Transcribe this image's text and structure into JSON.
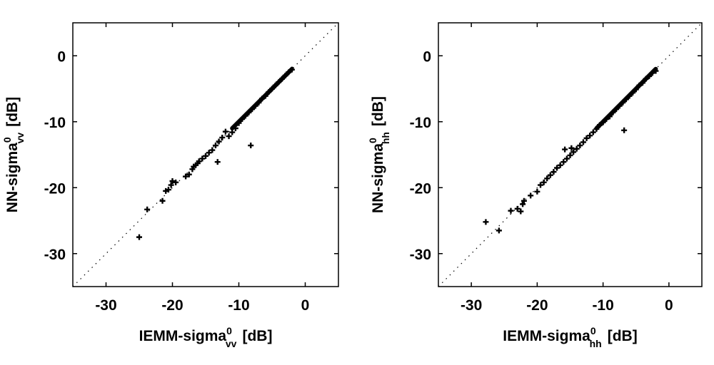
{
  "chart_data": [
    {
      "type": "scatter",
      "xlabel": "IEMM-sigma",
      "xlabel_sup": "0",
      "xlabel_sub": "vv",
      "xlabel_unit": "[dB]",
      "ylabel": "NN-sigma",
      "ylabel_sup": "0",
      "ylabel_sub": "vv",
      "ylabel_unit": "[dB]",
      "xlim": [
        -35,
        5
      ],
      "ylim": [
        -35,
        5
      ],
      "xticks": [
        -30,
        -20,
        -10,
        0
      ],
      "yticks": [
        -30,
        -20,
        -10,
        0
      ],
      "reference_line": "1:1 dotted",
      "grid": false,
      "marker": "+",
      "points": [
        [
          -25.0,
          -27.5
        ],
        [
          -23.8,
          -23.3
        ],
        [
          -21.5,
          -22.0
        ],
        [
          -21.0,
          -20.5
        ],
        [
          -20.6,
          -20.3
        ],
        [
          -20.2,
          -19.6
        ],
        [
          -20.0,
          -19.0
        ],
        [
          -19.5,
          -19.2
        ],
        [
          -18.0,
          -18.3
        ],
        [
          -17.5,
          -18.0
        ],
        [
          -17.0,
          -17.2
        ],
        [
          -16.8,
          -16.8
        ],
        [
          -16.5,
          -16.6
        ],
        [
          -16.2,
          -16.3
        ],
        [
          -16.0,
          -16.0
        ],
        [
          -15.5,
          -15.6
        ],
        [
          -15.0,
          -15.2
        ],
        [
          -14.5,
          -14.7
        ],
        [
          -14.0,
          -14.3
        ],
        [
          -13.5,
          -13.6
        ],
        [
          -13.2,
          -16.1
        ],
        [
          -13.0,
          -13.0
        ],
        [
          -12.5,
          -12.4
        ],
        [
          -12.0,
          -11.5
        ],
        [
          -11.5,
          -12.2
        ],
        [
          -11.0,
          -11.6
        ],
        [
          -10.5,
          -11.0
        ],
        [
          -10.0,
          -10.2
        ],
        [
          -9.5,
          -9.6
        ],
        [
          -9.0,
          -9.1
        ],
        [
          -8.5,
          -8.6
        ],
        [
          -8.2,
          -13.6
        ],
        [
          -8.0,
          -8.1
        ],
        [
          -7.5,
          -7.6
        ],
        [
          -7.0,
          -7.1
        ],
        [
          -6.5,
          -6.5
        ],
        [
          -6.0,
          -6.1
        ],
        [
          -5.5,
          -5.5
        ],
        [
          -5.0,
          -5.0
        ],
        [
          -4.5,
          -4.5
        ],
        [
          -4.0,
          -4.0
        ],
        [
          -3.5,
          -3.5
        ],
        [
          -3.0,
          -3.0
        ],
        [
          -2.5,
          -2.5
        ],
        [
          -2.0,
          -2.1
        ]
      ]
    },
    {
      "type": "scatter",
      "xlabel": "IEMM-sigma",
      "xlabel_sup": "0",
      "xlabel_sub": "hh",
      "xlabel_unit": "[dB]",
      "ylabel": "NN-sigma",
      "ylabel_sup": "0",
      "ylabel_sub": "hh",
      "ylabel_unit": "[dB]",
      "xlim": [
        -35,
        5
      ],
      "ylim": [
        -35,
        5
      ],
      "xticks": [
        -30,
        -20,
        -10,
        0
      ],
      "yticks": [
        -30,
        -20,
        -10,
        0
      ],
      "reference_line": "1:1 dotted",
      "grid": false,
      "marker": "+",
      "points": [
        [
          -27.8,
          -25.2
        ],
        [
          -25.8,
          -26.5
        ],
        [
          -24.0,
          -23.5
        ],
        [
          -23.0,
          -23.2
        ],
        [
          -22.5,
          -23.6
        ],
        [
          -22.2,
          -22.5
        ],
        [
          -22.0,
          -22.0
        ],
        [
          -21.0,
          -21.2
        ],
        [
          -20.0,
          -20.6
        ],
        [
          -19.5,
          -19.6
        ],
        [
          -19.0,
          -19.2
        ],
        [
          -18.5,
          -18.6
        ],
        [
          -18.0,
          -18.1
        ],
        [
          -17.5,
          -17.6
        ],
        [
          -17.0,
          -17.0
        ],
        [
          -16.5,
          -16.6
        ],
        [
          -16.0,
          -16.1
        ],
        [
          -15.8,
          -14.2
        ],
        [
          -15.5,
          -15.6
        ],
        [
          -15.0,
          -15.1
        ],
        [
          -14.8,
          -14.0
        ],
        [
          -14.5,
          -14.6
        ],
        [
          -14.0,
          -14.1
        ],
        [
          -13.5,
          -13.6
        ],
        [
          -13.0,
          -13.1
        ],
        [
          -12.5,
          -12.5
        ],
        [
          -12.0,
          -12.1
        ],
        [
          -11.5,
          -11.6
        ],
        [
          -11.0,
          -11.1
        ],
        [
          -10.5,
          -10.5
        ],
        [
          -10.0,
          -10.1
        ],
        [
          -9.5,
          -9.6
        ],
        [
          -9.0,
          -9.2
        ],
        [
          -8.5,
          -8.6
        ],
        [
          -8.0,
          -8.1
        ],
        [
          -7.5,
          -7.6
        ],
        [
          -7.0,
          -7.1
        ],
        [
          -6.8,
          -11.3
        ],
        [
          -6.5,
          -6.6
        ],
        [
          -6.0,
          -6.1
        ],
        [
          -5.5,
          -5.6
        ],
        [
          -5.0,
          -5.1
        ],
        [
          -4.5,
          -4.5
        ],
        [
          -4.0,
          -4.1
        ],
        [
          -3.5,
          -3.5
        ],
        [
          -3.0,
          -3.1
        ],
        [
          -2.5,
          -2.6
        ],
        [
          -2.0,
          -2.3
        ]
      ]
    }
  ]
}
